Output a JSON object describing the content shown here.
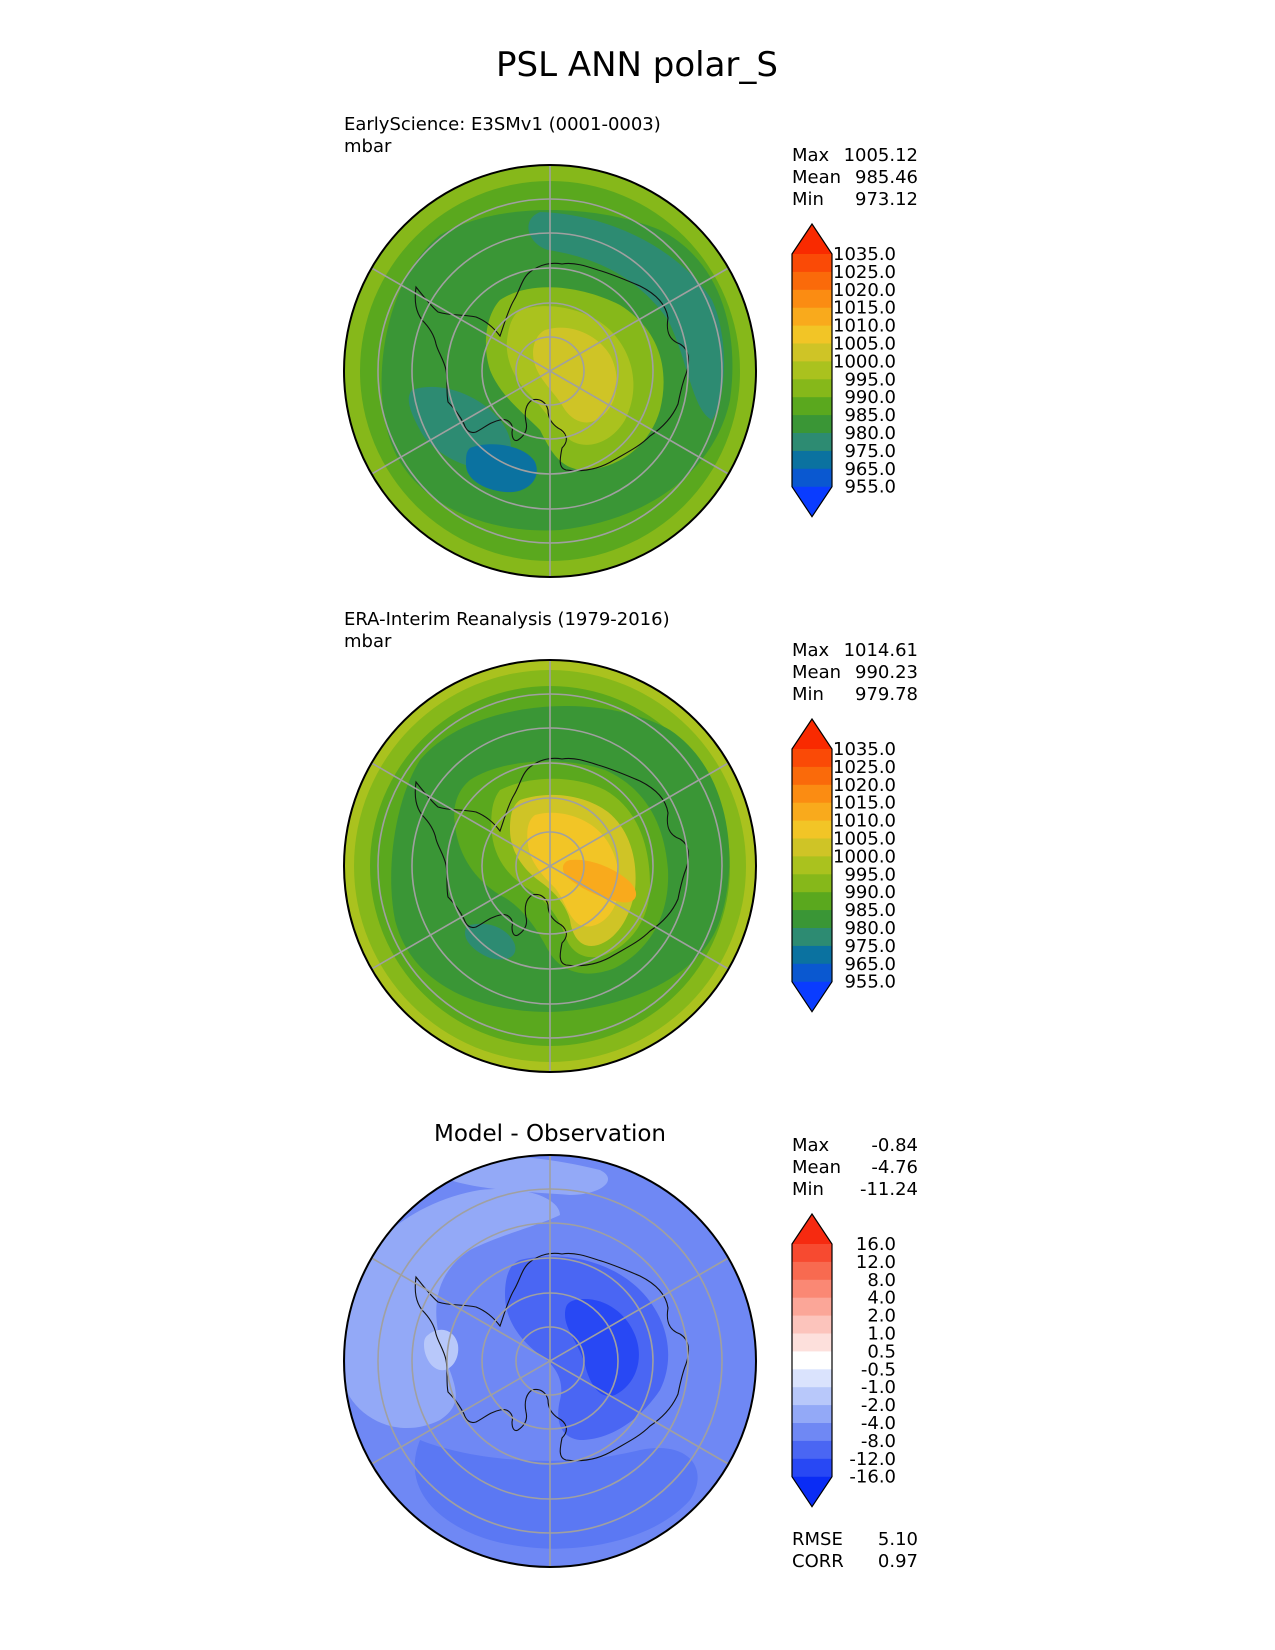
{
  "figure": {
    "title": "PSL ANN polar_S"
  },
  "colors": {
    "psl_levels": [
      "#0a3cff",
      "#0a58d0",
      "#0b72a0",
      "#2d8b72",
      "#3a9636",
      "#5aa81e",
      "#86b81a",
      "#aac21e",
      "#cfc426",
      "#f2c526",
      "#f9aa1c",
      "#fb8c12",
      "#fa6a0a",
      "#fa4a06",
      "#f92a00"
    ],
    "diff_levels": [
      "#0a2cf5",
      "#2848f4",
      "#4a66f3",
      "#6f88f4",
      "#93a9f7",
      "#b8c8fa",
      "#dae3fd",
      "#ffffff",
      "#fde0dc",
      "#fcc4bc",
      "#fba698",
      "#fa8874",
      "#f86a50",
      "#f74a30",
      "#f62a10"
    ]
  },
  "chart_data": [
    {
      "type": "heatmap",
      "projection": "south-polar-stereographic",
      "title": "EarlyScience: E3SMv1 (0001-0003)",
      "units": "mbar",
      "stats": {
        "max_label": "Max",
        "max": "1005.12",
        "mean_label": "Mean",
        "mean": "985.46",
        "min_label": "Min",
        "min": "973.12"
      },
      "colorbar_levels": [
        "1035.0",
        "1025.0",
        "1020.0",
        "1015.0",
        "1010.0",
        "1005.0",
        "1000.0",
        "995.0",
        "990.0",
        "985.0",
        "980.0",
        "975.0",
        "965.0",
        "955.0"
      ],
      "value_range": [
        973.12,
        1005.12
      ],
      "regions": [
        {
          "value": 992,
          "points": [
            [
              0.0,
              0.0
            ]
          ],
          "note": "outer ring fill"
        }
      ]
    },
    {
      "type": "heatmap",
      "projection": "south-polar-stereographic",
      "title": "ERA-Interim Reanalysis (1979-2016)",
      "units": "mbar",
      "stats": {
        "max_label": "Max",
        "max": "1014.61",
        "mean_label": "Mean",
        "mean": "990.23",
        "min_label": "Min",
        "min": "979.78"
      },
      "colorbar_levels": [
        "1035.0",
        "1025.0",
        "1020.0",
        "1015.0",
        "1010.0",
        "1005.0",
        "1000.0",
        "995.0",
        "990.0",
        "985.0",
        "980.0",
        "975.0",
        "965.0",
        "955.0"
      ],
      "value_range": [
        979.78,
        1014.61
      ]
    },
    {
      "type": "heatmap",
      "projection": "south-polar-stereographic",
      "title": "Model - Observation",
      "stats": {
        "max_label": "Max",
        "max": "-0.84",
        "mean_label": "Mean",
        "mean": "-4.76",
        "min_label": "Min",
        "min": "-11.24"
      },
      "colorbar_levels": [
        "16.0",
        "12.0",
        "8.0",
        "4.0",
        "2.0",
        "1.0",
        "0.5",
        "-0.5",
        "-1.0",
        "-2.0",
        "-4.0",
        "-8.0",
        "-12.0",
        "-16.0"
      ],
      "value_range": [
        -11.24,
        -0.84
      ],
      "metrics": {
        "rmse_label": "RMSE",
        "rmse": "5.10",
        "corr_label": "CORR",
        "corr": "0.97"
      }
    }
  ]
}
